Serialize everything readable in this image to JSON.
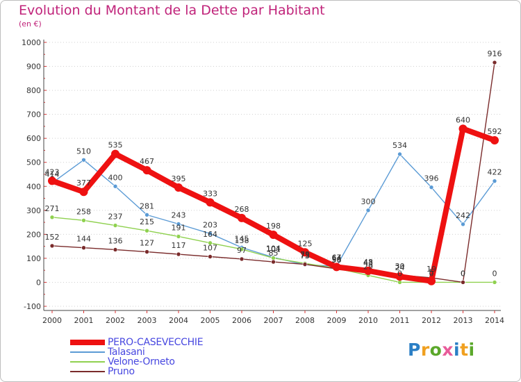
{
  "logo": {
    "text": "Proxiti",
    "letters": [
      {
        "ch": "P",
        "color": "#2b7fc5"
      },
      {
        "ch": "r",
        "color": "#f0a020"
      },
      {
        "ch": "o",
        "color": "#5ba82b"
      },
      {
        "ch": "x",
        "color": "#e85c9a"
      },
      {
        "ch": "i",
        "color": "#2b7fc5"
      },
      {
        "ch": "t",
        "color": "#f0a020"
      },
      {
        "ch": "i",
        "color": "#5ba82b"
      }
    ]
  },
  "chart_data": {
    "type": "line",
    "title": "Evolution du Montant de la Dette par Habitant",
    "subtitle": "(en €)",
    "xlabel": "",
    "ylabel": "",
    "categories": [
      "2000",
      "2001",
      "2002",
      "2003",
      "2004",
      "2005",
      "2006",
      "2007",
      "2008",
      "2009",
      "2010",
      "2011",
      "2012",
      "2013",
      "2014"
    ],
    "ylim": [
      -100,
      1000
    ],
    "yticks": [
      "-100",
      "0",
      "100",
      "200",
      "300",
      "400",
      "500",
      "600",
      "700",
      "800",
      "900",
      "1000"
    ],
    "ytick_values": [
      -100,
      0,
      100,
      200,
      300,
      400,
      500,
      600,
      700,
      800,
      900,
      1000
    ],
    "grid": "horizontal dotted",
    "legend_position": "bottom-left",
    "series": [
      {
        "name": "PERO-CASEVECCHIE",
        "color": "#ee1111",
        "thick": true,
        "values": [
          423,
          377,
          535,
          467,
          395,
          333,
          268,
          198,
          125,
          64,
          48,
          24,
          5,
          640,
          592
        ],
        "labels": [
          "423",
          "377",
          "535",
          "467",
          "395",
          "333",
          "268",
          "198",
          "125",
          "64",
          "48",
          "24",
          "5",
          "640",
          "592"
        ]
      },
      {
        "name": "Talasani",
        "color": "#5b9bd5",
        "thick": false,
        "values": [
          414,
          510,
          400,
          281,
          243,
          203,
          145,
          104,
          73,
          67,
          300,
          534,
          396,
          242,
          422
        ],
        "labels": [
          "414",
          "510",
          "400",
          "281",
          "243",
          "203",
          "145",
          "104",
          "73",
          "67",
          "300",
          "534",
          "396",
          "242",
          "422"
        ]
      },
      {
        "name": "Velone-Orneto",
        "color": "#8fd14f",
        "thick": false,
        "values": [
          271,
          258,
          237,
          215,
          191,
          164,
          138,
          101,
          79,
          58,
          29,
          0,
          0,
          0,
          0
        ],
        "labels": [
          "271",
          "258",
          "237",
          "215",
          "191",
          "164",
          "138",
          "101",
          "79",
          "58",
          "29",
          "0",
          "0",
          "0",
          "0"
        ]
      },
      {
        "name": "Pruno",
        "color": "#7a2b2b",
        "thick": false,
        "values": [
          152,
          144,
          136,
          127,
          117,
          107,
          97,
          85,
          75,
          56,
          43,
          30,
          19,
          0,
          916
        ],
        "labels": [
          "152",
          "144",
          "136",
          "127",
          "117",
          "107",
          "97",
          "85",
          "75",
          "56",
          "43",
          "30",
          "19",
          "0",
          "916"
        ]
      }
    ]
  }
}
